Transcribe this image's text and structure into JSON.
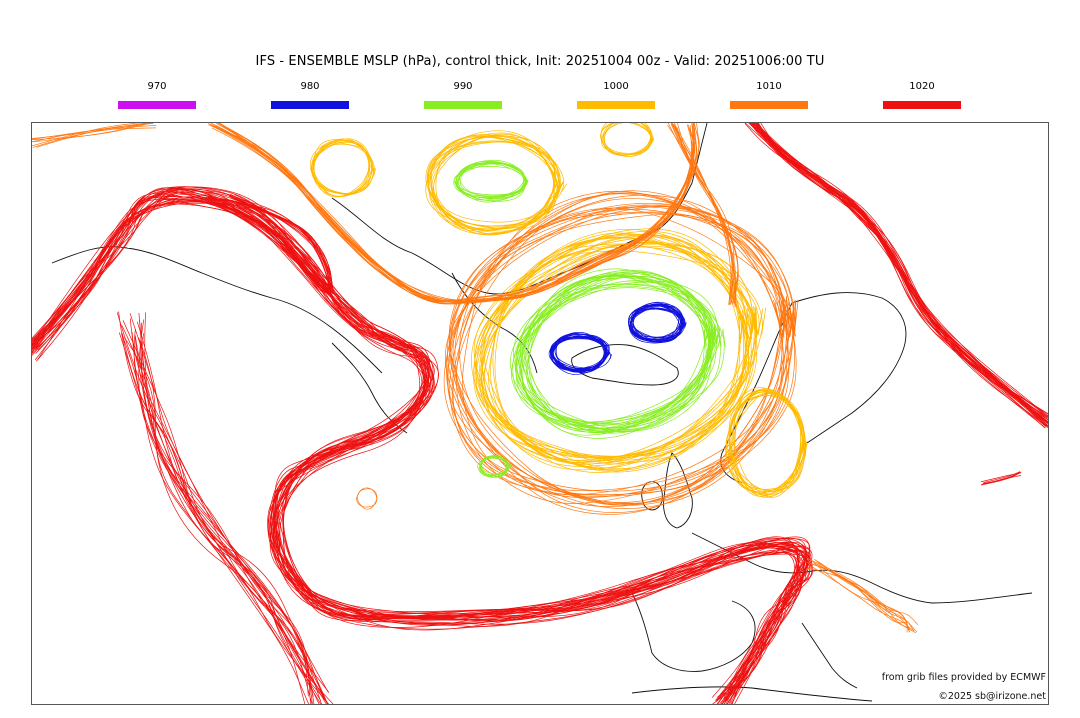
{
  "title": "IFS - ENSEMBLE MSLP (hPa), control thick, Init: 20251004 00z - Valid: 20251006:00 TU",
  "legend": [
    {
      "label": "970",
      "color": "#cc11ee"
    },
    {
      "label": "980",
      "color": "#1111dd"
    },
    {
      "label": "990",
      "color": "#88ee22"
    },
    {
      "label": "1000",
      "color": "#ffbb00"
    },
    {
      "label": "1010",
      "color": "#ff7711"
    },
    {
      "label": "1020",
      "color": "#ee1111"
    }
  ],
  "credits": {
    "source": "from grib files provided by ECMWF",
    "copyright": "©2025 sb@irizone.net"
  },
  "isobar_levels_shown": [
    "980",
    "990",
    "1000",
    "1010",
    "1020"
  ],
  "map_features": [
    "coastlines",
    "country-borders",
    "ensemble-isobar-spaghetti"
  ]
}
